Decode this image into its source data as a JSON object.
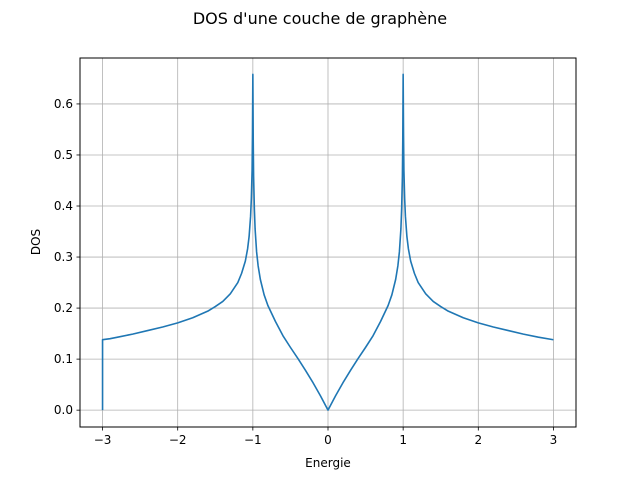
{
  "chart_data": {
    "type": "line",
    "title": "DOS d'une couche de graphène",
    "xlabel": "Energie",
    "ylabel": "DOS",
    "xlim": [
      -3.3,
      3.3
    ],
    "ylim": [
      -0.033,
      0.69
    ],
    "grid": true,
    "xticks": [
      -3,
      -2,
      -1,
      0,
      1,
      2,
      3
    ],
    "xtick_labels": [
      "−3",
      "−2",
      "−1",
      "0",
      "1",
      "2",
      "3"
    ],
    "yticks": [
      0.0,
      0.1,
      0.2,
      0.3,
      0.4,
      0.5,
      0.6
    ],
    "ytick_labels": [
      "0.0",
      "0.1",
      "0.2",
      "0.3",
      "0.4",
      "0.5",
      "0.6"
    ],
    "series": [
      {
        "color": "#1f77b4",
        "x": [
          -3.0,
          -3.0,
          -2.9,
          -2.8,
          -2.6,
          -2.4,
          -2.2,
          -2.0,
          -1.8,
          -1.6,
          -1.5,
          -1.4,
          -1.3,
          -1.2,
          -1.15,
          -1.1,
          -1.07,
          -1.05,
          -1.03,
          -1.02,
          -1.01,
          -1.005,
          -1.0,
          -0.995,
          -0.99,
          -0.98,
          -0.97,
          -0.95,
          -0.93,
          -0.9,
          -0.85,
          -0.8,
          -0.7,
          -0.6,
          -0.5,
          -0.4,
          -0.3,
          -0.2,
          -0.1,
          0.0,
          0.1,
          0.2,
          0.3,
          0.4,
          0.5,
          0.6,
          0.7,
          0.8,
          0.85,
          0.9,
          0.93,
          0.95,
          0.97,
          0.98,
          0.99,
          0.995,
          1.0,
          1.005,
          1.01,
          1.02,
          1.03,
          1.05,
          1.07,
          1.1,
          1.15,
          1.2,
          1.3,
          1.4,
          1.5,
          1.6,
          1.8,
          2.0,
          2.2,
          2.4,
          2.6,
          2.8,
          3.0
        ],
        "y": [
          0.0,
          0.138,
          0.14,
          0.143,
          0.149,
          0.156,
          0.163,
          0.171,
          0.181,
          0.194,
          0.203,
          0.213,
          0.228,
          0.25,
          0.268,
          0.292,
          0.316,
          0.34,
          0.38,
          0.415,
          0.47,
          0.54,
          0.658,
          0.53,
          0.458,
          0.395,
          0.355,
          0.31,
          0.283,
          0.256,
          0.226,
          0.205,
          0.174,
          0.146,
          0.123,
          0.101,
          0.078,
          0.054,
          0.028,
          0.0,
          0.028,
          0.054,
          0.078,
          0.101,
          0.123,
          0.146,
          0.174,
          0.205,
          0.226,
          0.256,
          0.283,
          0.31,
          0.355,
          0.395,
          0.458,
          0.53,
          0.658,
          0.54,
          0.47,
          0.415,
          0.38,
          0.34,
          0.316,
          0.292,
          0.268,
          0.25,
          0.228,
          0.213,
          0.203,
          0.194,
          0.181,
          0.171,
          0.163,
          0.156,
          0.149,
          0.143,
          0.138
        ]
      }
    ]
  }
}
